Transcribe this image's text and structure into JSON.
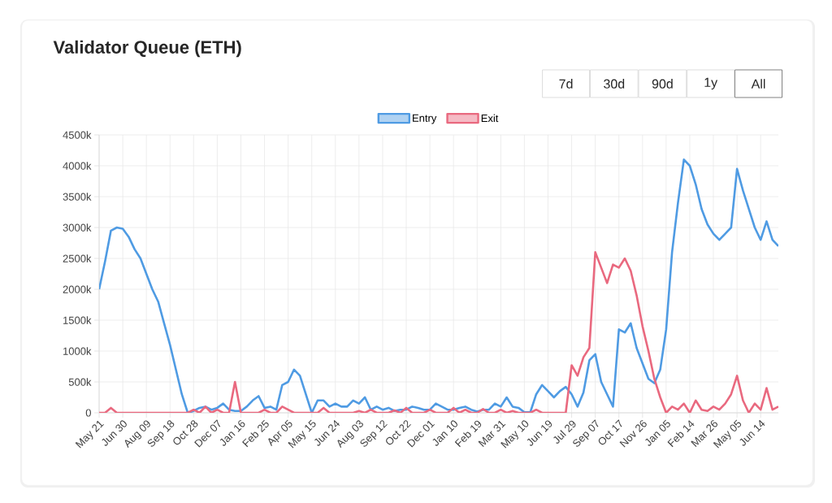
{
  "chart_data": {
    "type": "line",
    "title": "Validator Queue (ETH)",
    "annotations": [
      "7d",
      "30d",
      "90d",
      "1y",
      "All"
    ],
    "categories": [
      "May 21",
      null,
      null,
      null,
      "Jun 30",
      null,
      null,
      null,
      "Aug 09",
      null,
      null,
      null,
      "Sep 18",
      null,
      null,
      null,
      "Oct 28",
      null,
      null,
      null,
      "Dec 07",
      null,
      null,
      null,
      "Jan 16",
      null,
      null,
      null,
      "Feb 25",
      null,
      null,
      null,
      "Apr 05",
      null,
      null,
      null,
      "May 15",
      null,
      null,
      null,
      "Jun 24",
      null,
      null,
      null,
      "Aug 03",
      null,
      null,
      null,
      "Sep 12",
      null,
      null,
      null,
      "Oct 22",
      null,
      null,
      null,
      "Dec 01",
      null,
      null,
      null,
      "Jan 10",
      null,
      null,
      null,
      "Feb 19",
      null,
      null,
      null,
      "Mar 31",
      null,
      null,
      null,
      "May 10",
      null,
      null,
      null,
      "Jun 19",
      null,
      null,
      null,
      "Jul 29",
      null,
      null,
      null,
      "Sep 07",
      null,
      null,
      null,
      "Oct 17",
      null,
      null,
      null,
      "Nov 26",
      null,
      null,
      null,
      "Jan 05",
      null,
      null,
      null,
      "Feb 14",
      null,
      null,
      null,
      "Mar 26",
      null,
      null,
      null,
      "May 05",
      null,
      null,
      null,
      "Jun 14",
      null,
      null,
      null
    ],
    "ylim": [
      0,
      4500000
    ],
    "yticks": [
      0,
      {
        "value": 500000,
        "label": "500k"
      },
      {
        "value": 1000000,
        "label": "1000k"
      },
      {
        "value": 1500000,
        "label": "1500k"
      },
      {
        "value": 2000000,
        "label": "2000k"
      },
      {
        "value": 2500000,
        "label": "2500k"
      },
      {
        "value": 3000000,
        "label": "3000k"
      },
      {
        "value": 3500000,
        "label": "3500k"
      },
      {
        "value": 4000000,
        "label": "4000k"
      },
      {
        "value": 4500000,
        "label": "4500k"
      }
    ],
    "grid": true,
    "legend": "top",
    "series": [
      {
        "name": "Entry",
        "color": "#4f9be3",
        "values": [
          2000000,
          2450000,
          2950000,
          3000000,
          2980000,
          2850000,
          2650000,
          2500000,
          2250000,
          2000000,
          1800000,
          1450000,
          1100000,
          700000,
          300000,
          0,
          30000,
          80000,
          100000,
          50000,
          80000,
          150000,
          50000,
          30000,
          30000,
          100000,
          200000,
          270000,
          80000,
          100000,
          50000,
          450000,
          500000,
          700000,
          600000,
          300000,
          0,
          200000,
          200000,
          100000,
          150000,
          100000,
          100000,
          200000,
          150000,
          250000,
          50000,
          100000,
          50000,
          80000,
          30000,
          50000,
          50000,
          100000,
          80000,
          50000,
          50000,
          150000,
          100000,
          50000,
          50000,
          80000,
          100000,
          50000,
          20000,
          50000,
          50000,
          150000,
          100000,
          250000,
          100000,
          80000,
          10000,
          10000,
          300000,
          450000,
          350000,
          250000,
          350000,
          420000,
          300000,
          100000,
          330000,
          850000,
          950000,
          500000,
          300000,
          100000,
          1350000,
          1300000,
          1450000,
          1050000,
          800000,
          550000,
          480000,
          700000,
          1350000,
          2600000,
          3400000,
          4100000,
          4000000,
          3700000,
          3300000,
          3050000,
          2900000,
          2800000,
          2900000,
          3000000,
          3950000,
          3600000,
          3300000,
          3000000,
          2800000,
          3100000,
          2800000,
          2700000
        ]
      },
      {
        "name": "Exit",
        "color": "#e9697f",
        "values": [
          0,
          0,
          80000,
          0,
          0,
          0,
          0,
          0,
          0,
          0,
          0,
          0,
          0,
          0,
          0,
          0,
          50000,
          0,
          100000,
          0,
          50000,
          0,
          0,
          500000,
          0,
          0,
          0,
          0,
          50000,
          0,
          0,
          100000,
          50000,
          0,
          0,
          0,
          0,
          0,
          80000,
          0,
          0,
          0,
          0,
          0,
          30000,
          0,
          50000,
          0,
          0,
          0,
          40000,
          0,
          80000,
          0,
          0,
          0,
          50000,
          0,
          0,
          0,
          80000,
          0,
          50000,
          0,
          0,
          60000,
          0,
          0,
          50000,
          0,
          30000,
          0,
          0,
          0,
          50000,
          0,
          0,
          0,
          0,
          0,
          770000,
          600000,
          900000,
          1050000,
          2600000,
          2350000,
          2100000,
          2400000,
          2350000,
          2500000,
          2300000,
          1900000,
          1400000,
          1000000,
          550000,
          250000,
          0,
          100000,
          50000,
          150000,
          0,
          200000,
          50000,
          30000,
          100000,
          50000,
          150000,
          300000,
          600000,
          200000,
          0,
          150000,
          50000,
          400000,
          50000,
          100000
        ]
      }
    ]
  }
}
